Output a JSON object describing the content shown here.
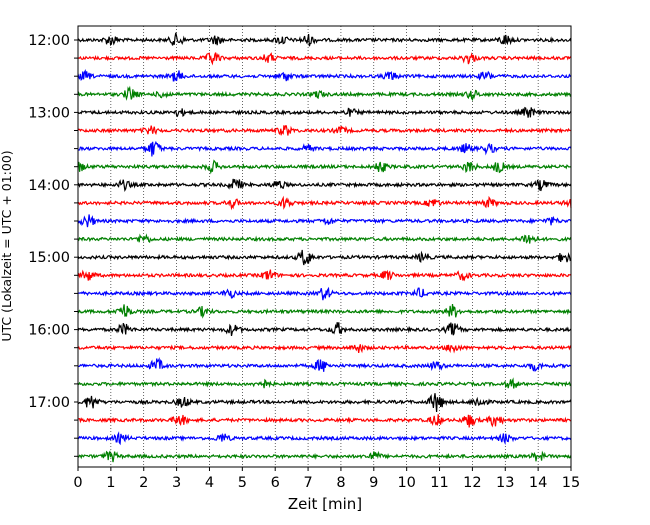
{
  "chart_data": {
    "type": "line",
    "xlabel": "Zeit  [min]",
    "ylabel": "UTC (Lokalzeit = UTC + 01:00)",
    "xlim": [
      0,
      15
    ],
    "x_ticks": [
      "0",
      "1",
      "2",
      "3",
      "4",
      "5",
      "6",
      "7",
      "8",
      "9",
      "10",
      "11",
      "12",
      "13",
      "14",
      "15"
    ],
    "y_tick_labels": [
      "12:00",
      "13:00",
      "14:00",
      "15:00",
      "16:00",
      "17:00"
    ],
    "grid": "vertical dotted lines at every minute",
    "trace_colors": [
      "#000000",
      "#ff0000",
      "#0000ff",
      "#008000"
    ],
    "traces": [
      {
        "start": "12:00",
        "color": "#000000",
        "bursts": [
          [
            1.0,
            5
          ],
          [
            3.0,
            6
          ],
          [
            4.2,
            4
          ],
          [
            6.2,
            4
          ],
          [
            7.0,
            5
          ],
          [
            13.0,
            5
          ]
        ]
      },
      {
        "start": "12:15",
        "color": "#ff0000",
        "bursts": [
          [
            4.1,
            6
          ],
          [
            5.8,
            4
          ],
          [
            11.9,
            5
          ]
        ]
      },
      {
        "start": "12:30",
        "color": "#0000ff",
        "bursts": [
          [
            0.2,
            4
          ],
          [
            3.0,
            5
          ],
          [
            6.3,
            4
          ],
          [
            9.5,
            4
          ],
          [
            12.4,
            4
          ]
        ]
      },
      {
        "start": "12:45",
        "color": "#008000",
        "bursts": [
          [
            1.6,
            6
          ],
          [
            2.6,
            3
          ],
          [
            7.3,
            3
          ],
          [
            12.0,
            4
          ]
        ]
      },
      {
        "start": "13:00",
        "color": "#000000",
        "bursts": [
          [
            3.1,
            3
          ],
          [
            8.3,
            3
          ],
          [
            13.7,
            5
          ]
        ]
      },
      {
        "start": "13:15",
        "color": "#ff0000",
        "bursts": [
          [
            2.2,
            4
          ],
          [
            6.3,
            5
          ],
          [
            8.0,
            3
          ]
        ]
      },
      {
        "start": "13:30",
        "color": "#0000ff",
        "bursts": [
          [
            2.3,
            8
          ],
          [
            7.0,
            3
          ],
          [
            11.8,
            4
          ],
          [
            12.5,
            4
          ]
        ]
      },
      {
        "start": "13:45",
        "color": "#008000",
        "bursts": [
          [
            0.0,
            5
          ],
          [
            4.1,
            5
          ],
          [
            9.2,
            5
          ],
          [
            11.9,
            5
          ],
          [
            12.8,
            5
          ]
        ]
      },
      {
        "start": "14:00",
        "color": "#000000",
        "bursts": [
          [
            1.4,
            4
          ],
          [
            4.8,
            6
          ],
          [
            6.1,
            4
          ],
          [
            14.1,
            5
          ]
        ]
      },
      {
        "start": "14:15",
        "color": "#ff0000",
        "bursts": [
          [
            4.7,
            4
          ],
          [
            6.3,
            5
          ],
          [
            10.8,
            4
          ],
          [
            12.5,
            4
          ],
          [
            15.0,
            4
          ]
        ]
      },
      {
        "start": "14:30",
        "color": "#0000ff",
        "bursts": [
          [
            0.3,
            6
          ],
          [
            7.6,
            3
          ],
          [
            14.4,
            3
          ]
        ]
      },
      {
        "start": "14:45",
        "color": "#008000",
        "bursts": [
          [
            2.0,
            4
          ],
          [
            13.7,
            6
          ]
        ]
      },
      {
        "start": "15:00",
        "color": "#000000",
        "bursts": [
          [
            6.9,
            8
          ],
          [
            10.5,
            4
          ],
          [
            14.8,
            5
          ]
        ]
      },
      {
        "start": "15:15",
        "color": "#ff0000",
        "bursts": [
          [
            0.3,
            5
          ],
          [
            5.8,
            5
          ],
          [
            9.4,
            4
          ],
          [
            11.7,
            4
          ]
        ]
      },
      {
        "start": "15:30",
        "color": "#0000ff",
        "bursts": [
          [
            4.6,
            4
          ],
          [
            7.5,
            6
          ],
          [
            10.4,
            4
          ]
        ]
      },
      {
        "start": "15:45",
        "color": "#008000",
        "bursts": [
          [
            1.4,
            7
          ],
          [
            3.8,
            4
          ],
          [
            11.4,
            6
          ]
        ]
      },
      {
        "start": "16:00",
        "color": "#000000",
        "bursts": [
          [
            1.4,
            5
          ],
          [
            4.7,
            5
          ],
          [
            7.9,
            6
          ],
          [
            11.4,
            6
          ]
        ]
      },
      {
        "start": "16:15",
        "color": "#ff0000",
        "bursts": [
          [
            8.5,
            4
          ],
          [
            11.4,
            4
          ]
        ]
      },
      {
        "start": "16:30",
        "color": "#0000ff",
        "bursts": [
          [
            2.4,
            6
          ],
          [
            7.4,
            6
          ],
          [
            10.9,
            4
          ],
          [
            13.9,
            4
          ]
        ]
      },
      {
        "start": "16:45",
        "color": "#008000",
        "bursts": [
          [
            5.6,
            4
          ],
          [
            13.2,
            4
          ]
        ]
      },
      {
        "start": "17:00",
        "color": "#000000",
        "bursts": [
          [
            0.4,
            7
          ],
          [
            3.2,
            5
          ],
          [
            10.9,
            10
          ],
          [
            12.2,
            5
          ]
        ]
      },
      {
        "start": "17:15",
        "color": "#ff0000",
        "bursts": [
          [
            3.1,
            5
          ],
          [
            10.9,
            5
          ],
          [
            11.9,
            6
          ],
          [
            12.7,
            6
          ]
        ]
      },
      {
        "start": "17:30",
        "color": "#0000ff",
        "bursts": [
          [
            1.3,
            4
          ],
          [
            4.4,
            4
          ],
          [
            13.0,
            4
          ]
        ]
      },
      {
        "start": "17:45",
        "color": "#008000",
        "bursts": [
          [
            1.0,
            5
          ],
          [
            9.0,
            4
          ],
          [
            14.0,
            4
          ]
        ]
      }
    ]
  }
}
